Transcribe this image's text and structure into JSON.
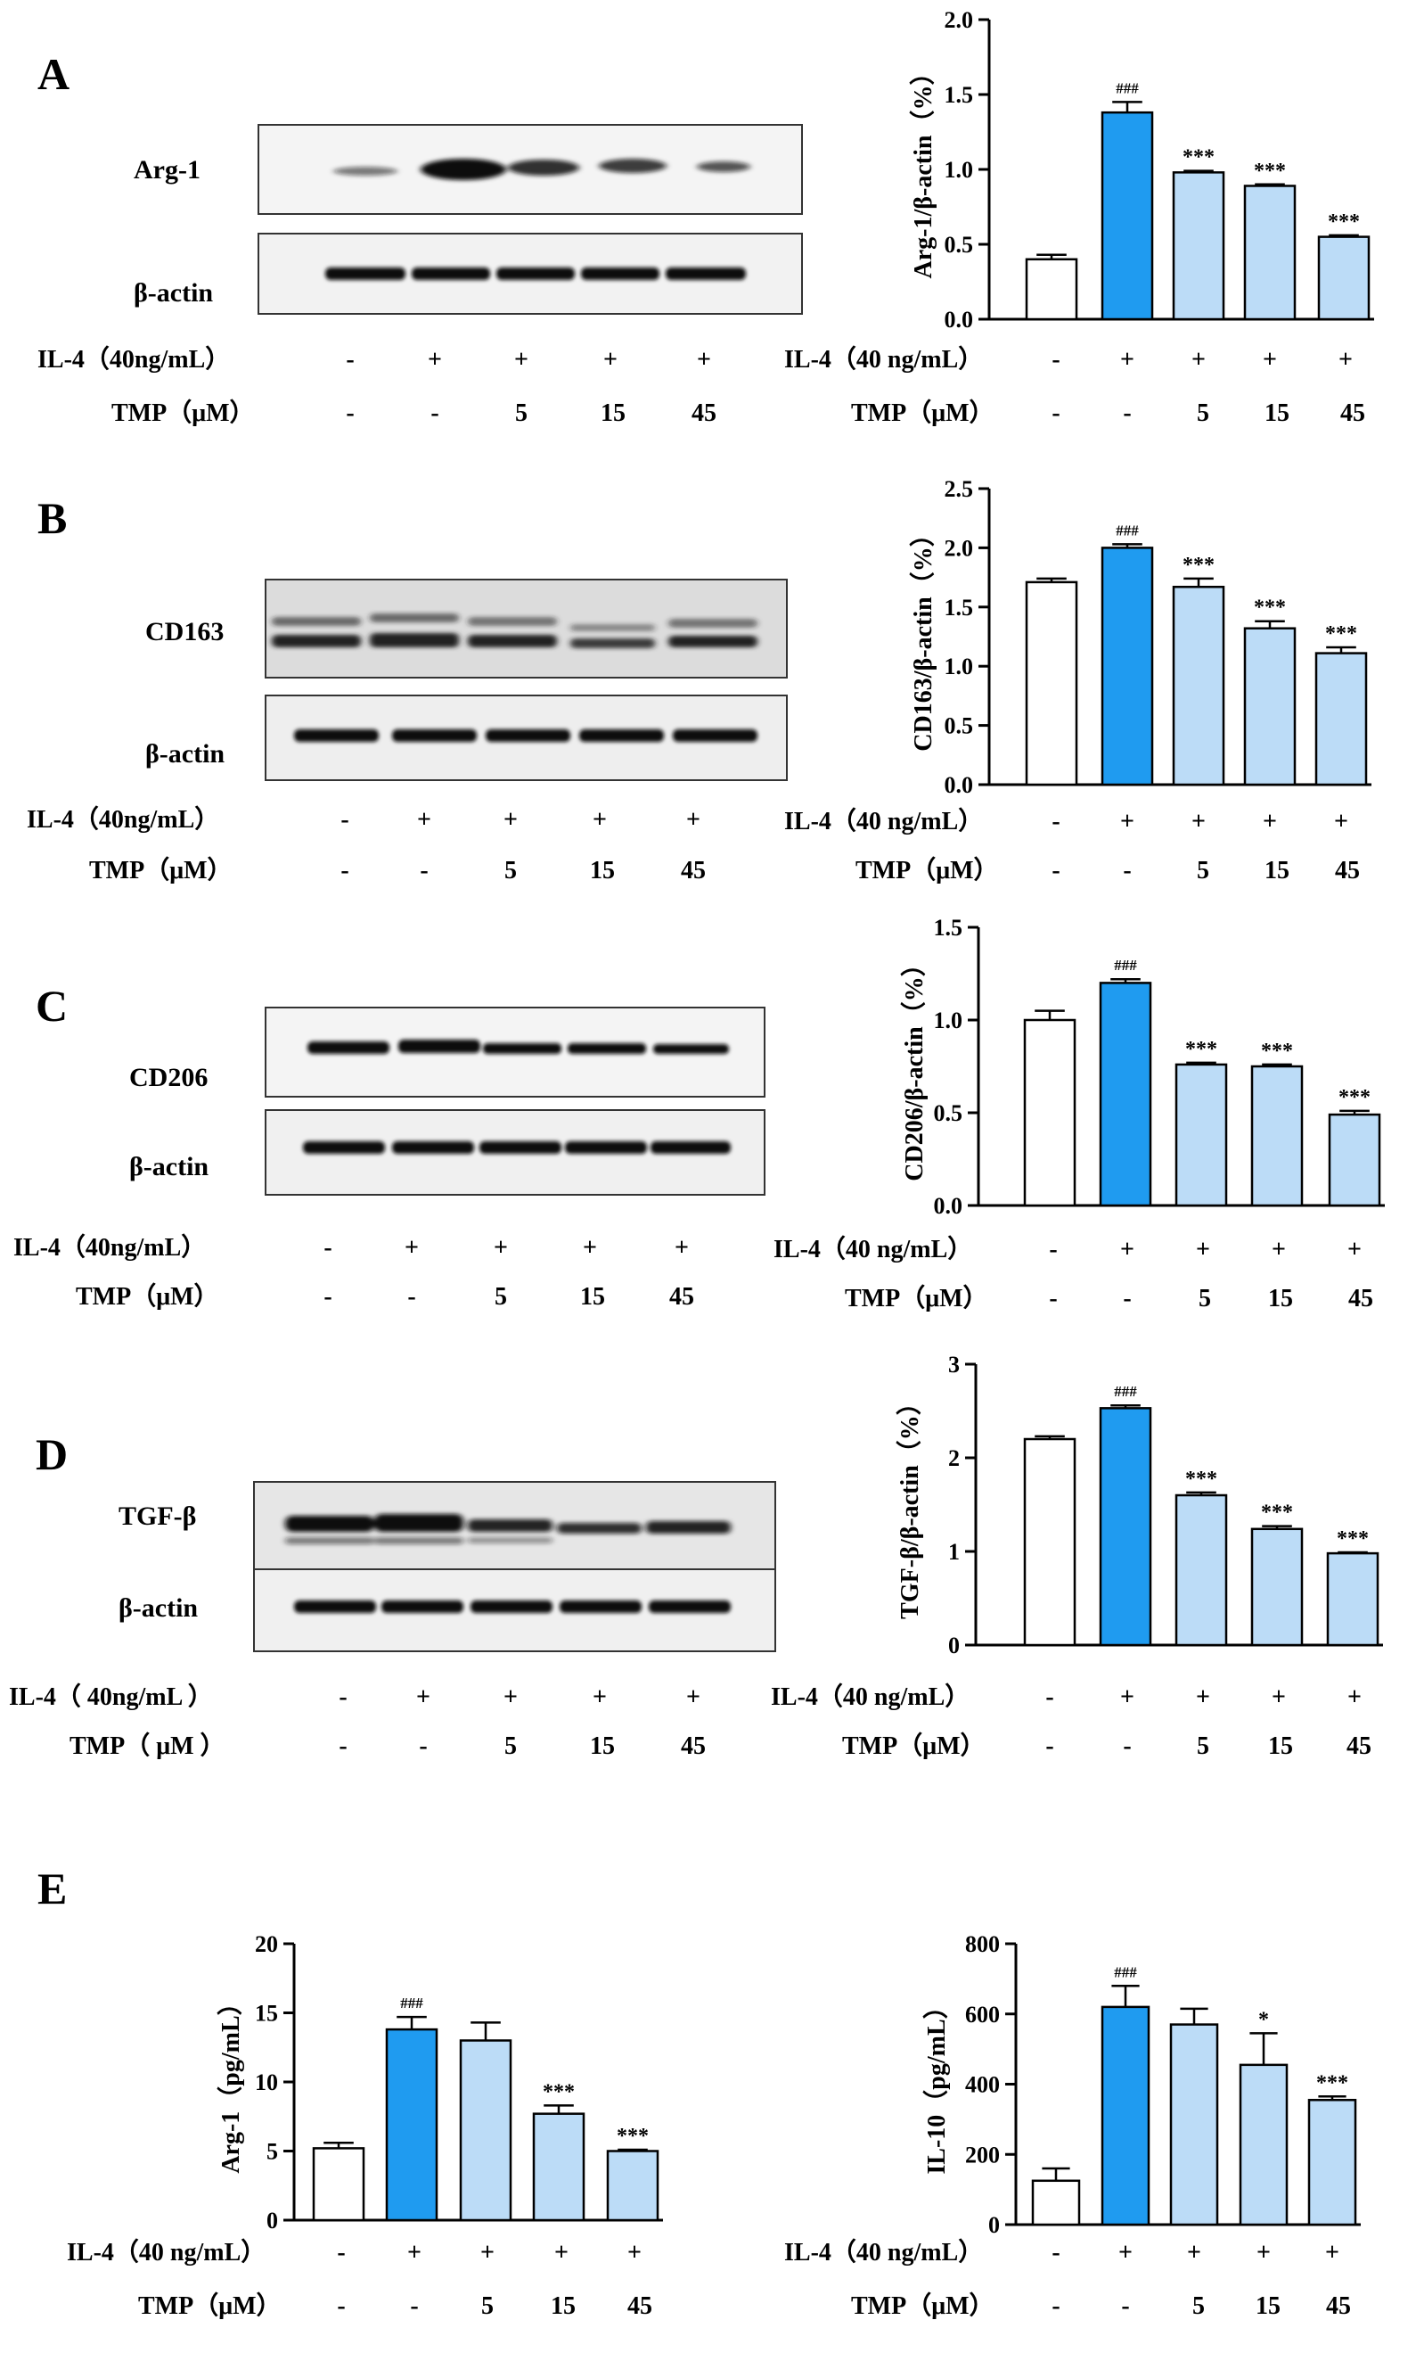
{
  "panels": [
    {
      "label": "A",
      "blot": {
        "target": "Arg-1",
        "control": "β-actin"
      }
    },
    {
      "label": "B",
      "blot": {
        "target": "CD163",
        "control": "β-actin"
      }
    },
    {
      "label": "C",
      "blot": {
        "target": "CD206",
        "control": "β-actin"
      }
    },
    {
      "label": "D",
      "blot": {
        "target": "TGF-β",
        "control": "β-actin"
      }
    },
    {
      "label": "E",
      "blot": null
    }
  ],
  "conditions": {
    "blot_rows": [
      {
        "label": "IL-4（40ng/mL）",
        "values": [
          "-",
          "+",
          "+",
          "+",
          "+"
        ]
      },
      {
        "label": "TMP（μM）",
        "values": [
          "-",
          "-",
          "5",
          "15",
          "45"
        ]
      }
    ],
    "blot_rows_d": [
      {
        "label": "IL-4（ 40ng/mL ）",
        "values": [
          "-",
          "+",
          "+",
          "+",
          "+"
        ]
      },
      {
        "label": "TMP（ μM ）",
        "values": [
          "-",
          "-",
          "5",
          "15",
          "45"
        ]
      }
    ],
    "chart_rows": [
      {
        "label": "IL-4（40 ng/mL）",
        "values": [
          "-",
          "+",
          "+",
          "+",
          "+"
        ]
      },
      {
        "label": "TMP（μM）",
        "values": [
          "-",
          "-",
          "5",
          "15",
          "45"
        ]
      }
    ]
  },
  "colors": {
    "control": "#ffffff",
    "il4": "#1f9bf0",
    "tmp": "#bcdcf7"
  },
  "chart_data": [
    {
      "id": "A",
      "type": "bar",
      "ylabel": "Arg-1/β-actin（%）",
      "ylim": [
        0,
        2.0
      ],
      "yticks": [
        "0.0",
        "0.5",
        "1.0",
        "1.5",
        "2.0"
      ],
      "values": [
        0.4,
        1.38,
        0.98,
        0.89,
        0.55
      ],
      "errors": [
        0.03,
        0.07,
        0.01,
        0.01,
        0.01
      ],
      "annotations": [
        "",
        "###",
        "***",
        "***",
        "***"
      ]
    },
    {
      "id": "B",
      "type": "bar",
      "ylabel": "CD163/β-actin（%）",
      "ylim": [
        0,
        2.5
      ],
      "yticks": [
        "0.0",
        "0.5",
        "1.0",
        "1.5",
        "2.0",
        "2.5"
      ],
      "values": [
        1.71,
        2.0,
        1.67,
        1.32,
        1.11
      ],
      "errors": [
        0.03,
        0.03,
        0.07,
        0.06,
        0.05
      ],
      "annotations": [
        "",
        "###",
        "***",
        "***",
        "***"
      ]
    },
    {
      "id": "C",
      "type": "bar",
      "ylabel": "CD206/β-actin（%）",
      "ylim": [
        0,
        1.5
      ],
      "yticks": [
        "0.0",
        "0.5",
        "1.0",
        "1.5"
      ],
      "values": [
        1.0,
        1.2,
        0.76,
        0.75,
        0.49
      ],
      "errors": [
        0.05,
        0.02,
        0.01,
        0.01,
        0.02
      ],
      "annotations": [
        "",
        "###",
        "***",
        "***",
        "***"
      ]
    },
    {
      "id": "D",
      "type": "bar",
      "ylabel": "TGF-β/β-actin（%）",
      "ylim": [
        0,
        3
      ],
      "yticks": [
        "0",
        "1",
        "2",
        "3"
      ],
      "values": [
        2.2,
        2.53,
        1.6,
        1.24,
        0.98
      ],
      "errors": [
        0.03,
        0.03,
        0.03,
        0.03,
        0.01
      ],
      "annotations": [
        "",
        "###",
        "***",
        "***",
        "***"
      ]
    },
    {
      "id": "E1",
      "type": "bar",
      "ylabel": "Arg-1（pg/mL）",
      "ylim": [
        0,
        20
      ],
      "yticks": [
        "0",
        "5",
        "10",
        "15",
        "20"
      ],
      "values": [
        5.2,
        13.8,
        13.0,
        7.7,
        5.0
      ],
      "errors": [
        0.4,
        0.9,
        1.3,
        0.6,
        0.1
      ],
      "annotations": [
        "",
        "###",
        "",
        "***",
        "***"
      ]
    },
    {
      "id": "E2",
      "type": "bar",
      "ylabel": "IL-10（pg/mL）",
      "ylim": [
        0,
        800
      ],
      "yticks": [
        "0",
        "200",
        "400",
        "600",
        "800"
      ],
      "values": [
        125,
        620,
        570,
        455,
        355
      ],
      "errors": [
        35,
        60,
        45,
        90,
        10
      ],
      "annotations": [
        "",
        "###",
        "",
        "*",
        "***"
      ]
    }
  ]
}
